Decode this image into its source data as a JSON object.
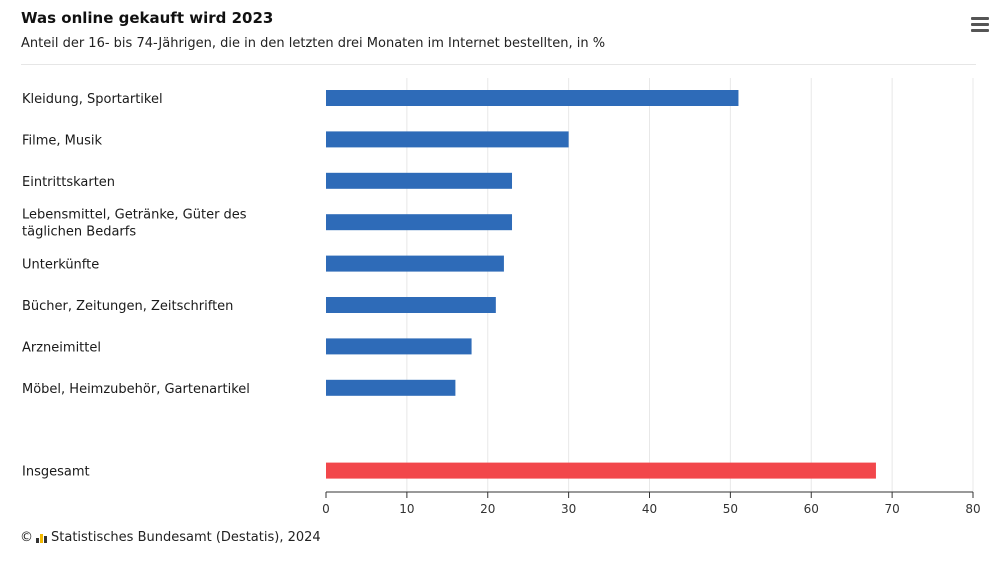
{
  "header": {
    "title": "Was online gekauft wird 2023",
    "subtitle": "Anteil der 16- bis 74-Jährigen, die in den letzten drei Monaten im Internet bestellten, in %",
    "menu_icon": "hamburger-menu-icon"
  },
  "footer": {
    "copyright_symbol": "©",
    "source_icon": "destatis-logo-icon",
    "source": "Statistisches Bundesamt (Destatis), 2024"
  },
  "colors": {
    "bar_default": "#2e6bb8",
    "bar_highlight": "#f2474b",
    "grid": "#e8e8e8",
    "axis": "#333333"
  },
  "chart_data": {
    "type": "bar",
    "orientation": "horizontal",
    "title": "Was online gekauft wird 2023",
    "subtitle": "Anteil der 16- bis 74-Jährigen, die in den letzten drei Monaten im Internet bestellten, in %",
    "categories": [
      "Kleidung, Sportartikel",
      "Filme, Musik",
      "Eintrittskarten",
      "Lebensmittel, Getränke, Güter des täglichen Bedarfs",
      "Unterkünfte",
      "Bücher, Zeitungen, Zeitschriften",
      "Arzneimittel",
      "Möbel, Heimzubehör, Gartenartikel",
      "",
      "Insgesamt"
    ],
    "values": [
      51,
      30,
      23,
      23,
      22,
      21,
      18,
      16,
      null,
      68
    ],
    "highlight": [
      false,
      false,
      false,
      false,
      false,
      false,
      false,
      false,
      false,
      true
    ],
    "xlim": [
      0,
      80
    ],
    "xticks": [
      0,
      10,
      20,
      30,
      40,
      50,
      60,
      70,
      80
    ],
    "grid": true,
    "legend": "none",
    "source": "Statistisches Bundesamt (Destatis), 2024"
  }
}
